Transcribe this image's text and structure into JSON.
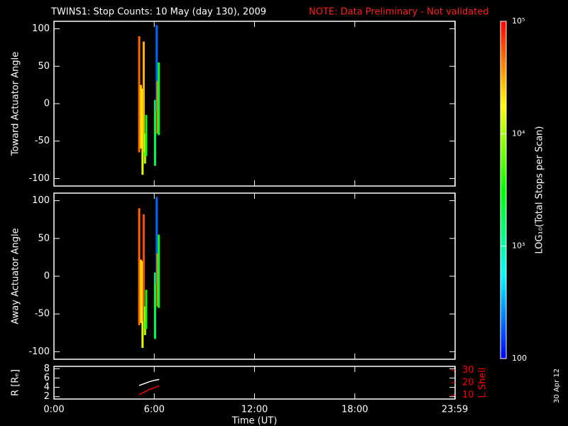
{
  "title": "TWINS1: Stop Counts: 10 May (day 130), 2009",
  "note": "NOTE: Data Preliminary - Not validated",
  "date_stamp": "30 Apr 12",
  "colorbar": {
    "label": "LOG₁₀(Total Stops per Scan)",
    "scale": "log",
    "lim": [
      100,
      100000
    ],
    "ticks": [
      {
        "value": 100,
        "label": "100"
      },
      {
        "value": 1000,
        "label": "10³"
      },
      {
        "value": 10000,
        "label": "10⁴"
      },
      {
        "value": 100000,
        "label": "10⁵"
      }
    ]
  },
  "chart_data": [
    {
      "type": "spectrogram",
      "ylabel": "Toward Actuator Angle",
      "xlim": [
        0,
        24
      ],
      "ylim": [
        -110,
        110
      ],
      "yticks": [
        -100,
        -50,
        0,
        50,
        100
      ],
      "segments": [
        {
          "x": 5.1,
          "y0": -65,
          "y1": 90,
          "value": 50000
        },
        {
          "x": 5.2,
          "y0": -60,
          "y1": 25,
          "value": 25000
        },
        {
          "x": 5.3,
          "y0": -95,
          "y1": 20,
          "value": 15000
        },
        {
          "x": 5.37,
          "y0": -65,
          "y1": 83,
          "value": 30000
        },
        {
          "x": 5.45,
          "y0": -80,
          "y1": -40,
          "value": 10000
        },
        {
          "x": 5.52,
          "y0": -70,
          "y1": -15,
          "value": 3000
        },
        {
          "x": 6.05,
          "y0": -83,
          "y1": 5,
          "value": 2000
        },
        {
          "x": 6.15,
          "y0": -10,
          "y1": 105,
          "value": 200
        },
        {
          "x": 6.2,
          "y0": -40,
          "y1": 30,
          "value": 40000
        },
        {
          "x": 6.27,
          "y0": -42,
          "y1": 55,
          "value": 3000
        }
      ]
    },
    {
      "type": "spectrogram",
      "ylabel": "Away Actuator Angle",
      "xlim": [
        0,
        24
      ],
      "ylim": [
        -110,
        110
      ],
      "yticks": [
        -100,
        -50,
        0,
        50,
        100
      ],
      "segments": [
        {
          "x": 5.1,
          "y0": -65,
          "y1": 90,
          "value": 50000
        },
        {
          "x": 5.2,
          "y0": -62,
          "y1": 22,
          "value": 25000
        },
        {
          "x": 5.3,
          "y0": -95,
          "y1": 20,
          "value": 15000
        },
        {
          "x": 5.37,
          "y0": -60,
          "y1": 82,
          "value": 60000
        },
        {
          "x": 5.45,
          "y0": -78,
          "y1": -40,
          "value": 10000
        },
        {
          "x": 5.52,
          "y0": -70,
          "y1": -18,
          "value": 3000
        },
        {
          "x": 6.05,
          "y0": -83,
          "y1": 5,
          "value": 2000
        },
        {
          "x": 6.15,
          "y0": -10,
          "y1": 105,
          "value": 200
        },
        {
          "x": 6.2,
          "y0": -40,
          "y1": 30,
          "value": 40000
        },
        {
          "x": 6.27,
          "y0": -42,
          "y1": 55,
          "value": 3000
        }
      ]
    },
    {
      "type": "line",
      "ylabel": "R [Rₑ]",
      "y2label": "L Shell",
      "xlabel": "Time (UT)",
      "xlim": [
        0,
        24
      ],
      "xticks": [
        {
          "value": 0,
          "label": "0:00"
        },
        {
          "value": 6,
          "label": "6:00"
        },
        {
          "value": 12,
          "label": "12:00"
        },
        {
          "value": 18,
          "label": "18:00"
        },
        {
          "value": 23.983,
          "label": "23:59"
        }
      ],
      "ylim": [
        1.5,
        8.5
      ],
      "yticks": [
        2,
        4,
        6,
        8
      ],
      "y2lim": [
        7,
        33
      ],
      "y2ticks": [
        10,
        20,
        30
      ],
      "x": [
        5.1,
        5.4,
        5.7,
        6.0,
        6.3
      ],
      "series": [
        {
          "name": "R",
          "color": "#ffffff",
          "values": [
            4.4,
            4.8,
            5.2,
            5.5,
            5.7
          ]
        },
        {
          "name": "L Shell",
          "color": "#ff0000",
          "axis": "y2",
          "values": [
            10.5,
            12.5,
            14.5,
            16,
            17.5
          ]
        }
      ]
    }
  ]
}
